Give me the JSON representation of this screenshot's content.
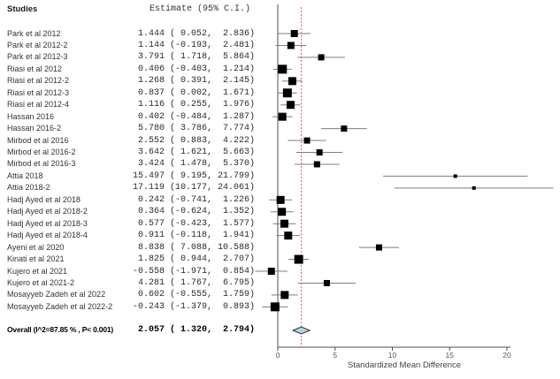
{
  "chart_data": {
    "type": "forest",
    "columns": {
      "studies": "Studies",
      "estimate": "Estimate (95% C.I.)"
    },
    "xlabel": "Standardized Mean Difference",
    "x_ticks": [
      0,
      5,
      10,
      15,
      20
    ],
    "x_range": [
      0,
      20
    ],
    "reference_line_x": 2.057,
    "studies": [
      {
        "label": "Park et al 2012",
        "estimate": 1.444,
        "ci_low": 0.052,
        "ci_high": 2.836,
        "marker_size": 8
      },
      {
        "label": "Park et al 2012-2",
        "estimate": 1.144,
        "ci_low": -0.193,
        "ci_high": 2.481,
        "marker_size": 8
      },
      {
        "label": "Park et al 2012-3",
        "estimate": 3.791,
        "ci_low": 1.718,
        "ci_high": 5.864,
        "marker_size": 7
      },
      {
        "label": "Riasi et al 2012",
        "estimate": 0.406,
        "ci_low": -0.403,
        "ci_high": 1.214,
        "marker_size": 10
      },
      {
        "label": "Riasi et al 2012-2",
        "estimate": 1.268,
        "ci_low": 0.391,
        "ci_high": 2.145,
        "marker_size": 9
      },
      {
        "label": "Riasi et al 2012-3",
        "estimate": 0.837,
        "ci_low": 0.002,
        "ci_high": 1.671,
        "marker_size": 10
      },
      {
        "label": "Riasi et al 2012-4",
        "estimate": 1.116,
        "ci_low": 0.255,
        "ci_high": 1.976,
        "marker_size": 9
      },
      {
        "label": "Hassan 2016",
        "estimate": 0.402,
        "ci_low": -0.484,
        "ci_high": 1.287,
        "marker_size": 9
      },
      {
        "label": "Hassan 2016-2",
        "estimate": 5.78,
        "ci_low": 3.786,
        "ci_high": 7.774,
        "marker_size": 7
      },
      {
        "label": "Mirbod et al 2016",
        "estimate": 2.552,
        "ci_low": 0.883,
        "ci_high": 4.222,
        "marker_size": 7
      },
      {
        "label": "Mirbod et al 2016-2",
        "estimate": 3.642,
        "ci_low": 1.621,
        "ci_high": 5.663,
        "marker_size": 7
      },
      {
        "label": "Mirbod et al 2016-3",
        "estimate": 3.424,
        "ci_low": 1.478,
        "ci_high": 5.37,
        "marker_size": 7
      },
      {
        "label": "Attia 2018",
        "estimate": 15.497,
        "ci_low": 9.195,
        "ci_high": 21.799,
        "marker_size": 4
      },
      {
        "label": "Attia 2018-2",
        "estimate": 17.119,
        "ci_low": 10.177,
        "ci_high": 24.061,
        "marker_size": 4
      },
      {
        "label": "Hadj Ayed et al 2018",
        "estimate": 0.242,
        "ci_low": -0.741,
        "ci_high": 1.226,
        "marker_size": 9
      },
      {
        "label": "Hadj Ayed et al 2018-2",
        "estimate": 0.364,
        "ci_low": -0.624,
        "ci_high": 1.352,
        "marker_size": 9
      },
      {
        "label": "Hadj Ayed et al 2018-3",
        "estimate": 0.577,
        "ci_low": -0.423,
        "ci_high": 1.577,
        "marker_size": 9
      },
      {
        "label": "Hadj Ayed et al 2018-4",
        "estimate": 0.911,
        "ci_low": -0.118,
        "ci_high": 1.941,
        "marker_size": 9
      },
      {
        "label": "Ayeni et al 2020",
        "estimate": 8.838,
        "ci_low": 7.088,
        "ci_high": 10.588,
        "marker_size": 7
      },
      {
        "label": "Kinati et al 2021",
        "estimate": 1.825,
        "ci_low": 0.944,
        "ci_high": 2.707,
        "marker_size": 10
      },
      {
        "label": "Kujero et al 2021",
        "estimate": -0.558,
        "ci_low": -1.971,
        "ci_high": 0.854,
        "marker_size": 8
      },
      {
        "label": "Kujero et al 2021-2",
        "estimate": 4.281,
        "ci_low": 1.767,
        "ci_high": 6.795,
        "marker_size": 7
      },
      {
        "label": "Mosayyeb Zadeh et al 2022",
        "estimate": 0.602,
        "ci_low": -0.555,
        "ci_high": 1.759,
        "marker_size": 9
      },
      {
        "label": "Mosayyeb Zadeh et al 2022-2",
        "estimate": -0.243,
        "ci_low": -1.379,
        "ci_high": 0.893,
        "marker_size": 10
      }
    ],
    "overall": {
      "label": "Overall (I^2=87.85 % , P< 0.001)",
      "estimate": 2.057,
      "ci_low": 1.32,
      "ci_high": 2.794
    },
    "colors": {
      "marker": "#000000",
      "ci_line": "#7d7d7d",
      "axis": "#4d4d4d",
      "tick_label": "#555555",
      "reference_line": "#e05c5c",
      "diamond_fill": "#add8e6",
      "diamond_border": "#333333"
    }
  }
}
